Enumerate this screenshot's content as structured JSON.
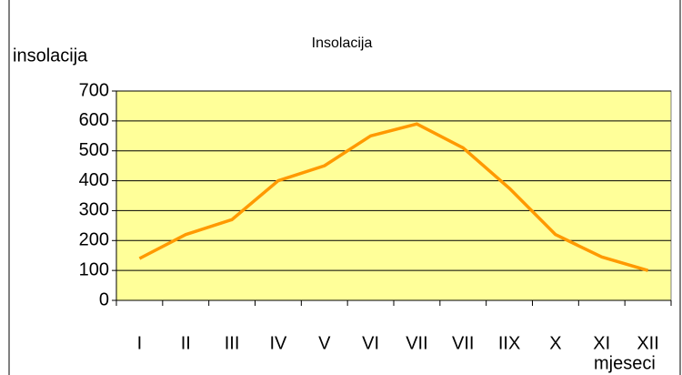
{
  "chart_data": {
    "type": "line",
    "title": "Insolacija",
    "y_label": "insolacija",
    "x_label": "mjeseci",
    "categories": [
      "I",
      "II",
      "III",
      "IV",
      "V",
      "VI",
      "VII",
      "VII",
      "IIX",
      "X",
      "XI",
      "XII"
    ],
    "series": [
      {
        "name": "Insolacija",
        "color": "#ff9900",
        "values": [
          140,
          220,
          270,
          400,
          450,
          550,
          590,
          510,
          375,
          220,
          145,
          100
        ]
      }
    ],
    "ylim": [
      0,
      700
    ],
    "yticks": [
      0,
      100,
      200,
      300,
      400,
      500,
      600,
      700
    ],
    "grid": true,
    "plot_background": "#ffff99"
  }
}
